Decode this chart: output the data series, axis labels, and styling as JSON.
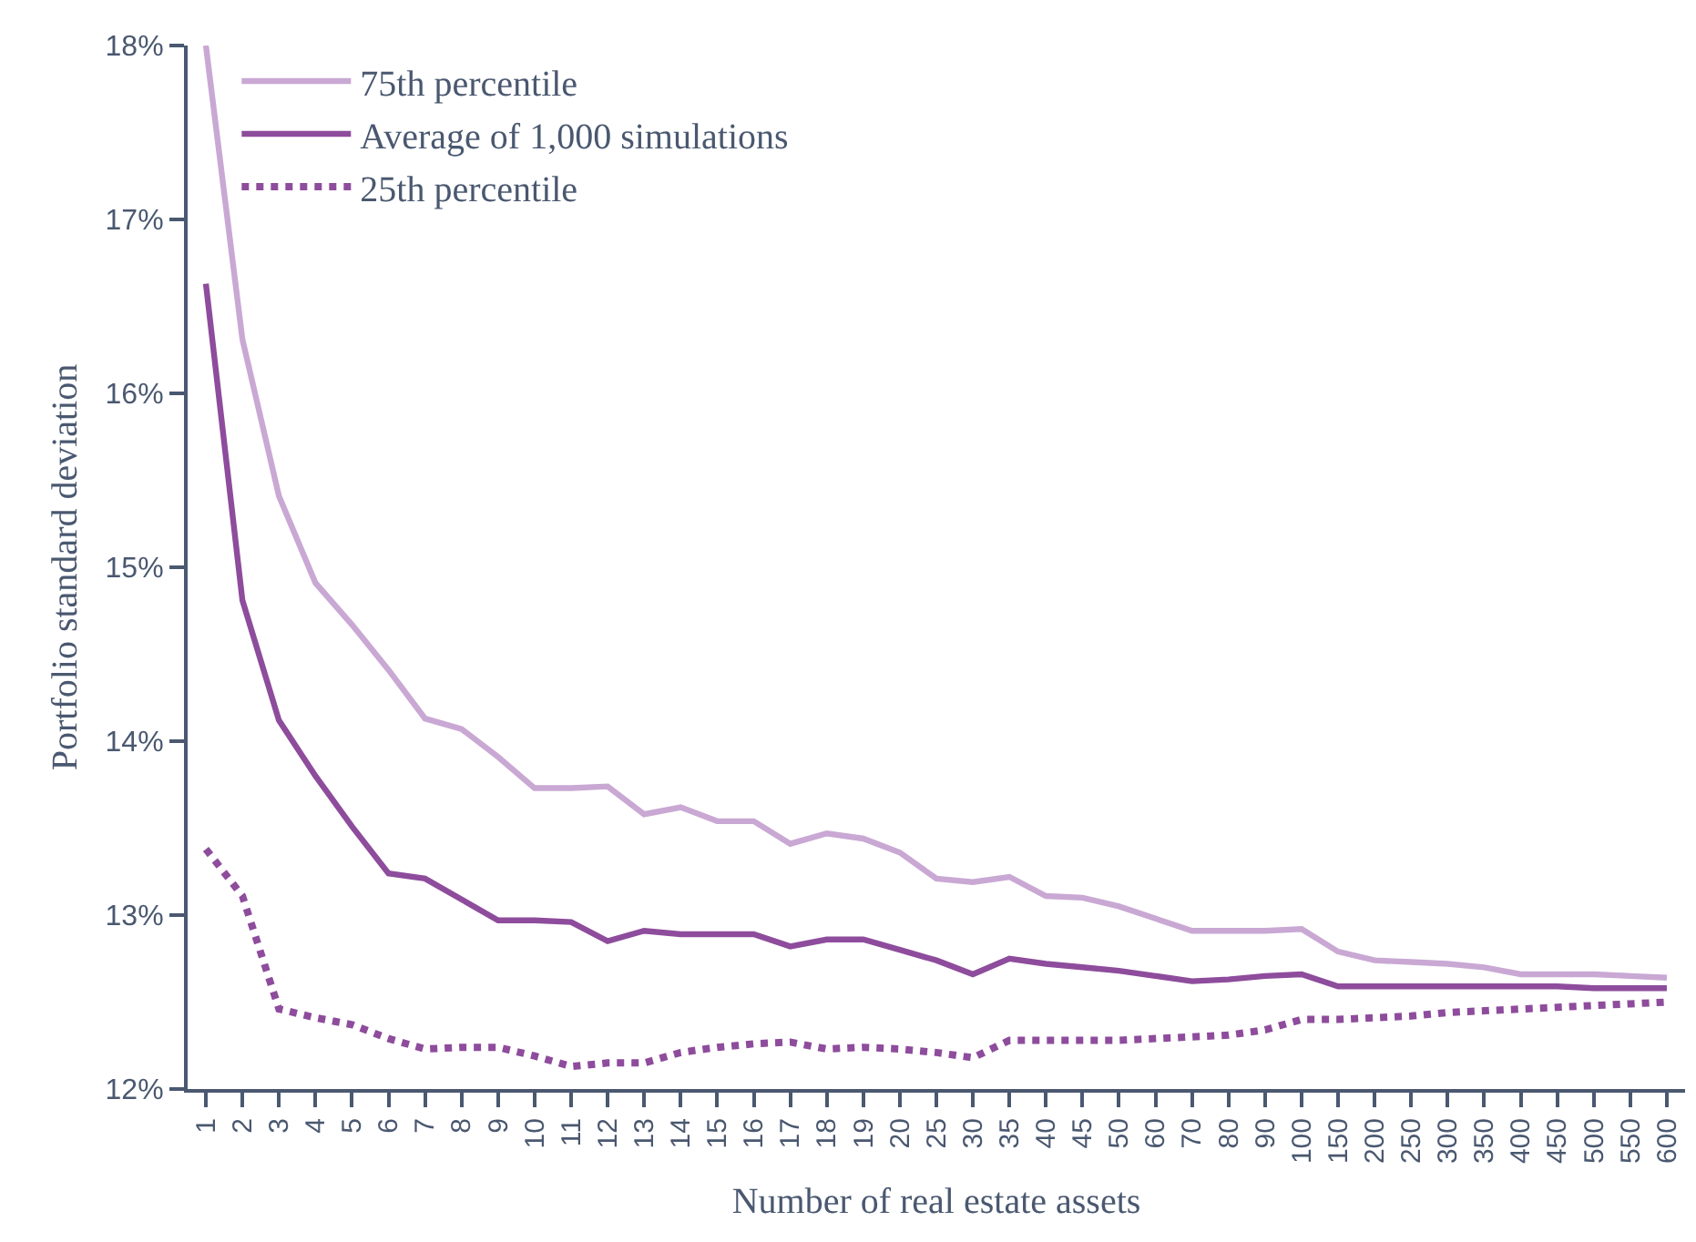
{
  "chart_data": {
    "type": "line",
    "xlabel": "Number of real estate assets",
    "ylabel": "Portfolio standard deviation",
    "categories": [
      "1",
      "2",
      "3",
      "4",
      "5",
      "6",
      "7",
      "8",
      "9",
      "10",
      "11",
      "12",
      "13",
      "14",
      "15",
      "16",
      "17",
      "18",
      "19",
      "20",
      "25",
      "30",
      "35",
      "40",
      "45",
      "50",
      "60",
      "70",
      "80",
      "90",
      "100",
      "150",
      "200",
      "250",
      "300",
      "350",
      "400",
      "450",
      "500",
      "550",
      "600"
    ],
    "series": [
      {
        "name": "75th percentile",
        "color": "#c9a8d4",
        "line_style": "solid",
        "values": [
          18,
          16.31,
          15.41,
          14.91,
          14.67,
          14.41,
          14.13,
          14.07,
          13.91,
          13.73,
          13.73,
          13.74,
          13.58,
          13.62,
          13.54,
          13.54,
          13.41,
          13.47,
          13.44,
          13.36,
          13.21,
          13.19,
          13.22,
          13.11,
          13.1,
          13.05,
          12.98,
          12.91,
          12.91,
          12.91,
          12.92,
          12.79,
          12.74,
          12.73,
          12.72,
          12.7,
          12.66,
          12.66,
          12.66,
          12.65,
          12.64
        ]
      },
      {
        "name": "Average of 1,000 simulations",
        "color": "#8e4c9c",
        "line_style": "solid",
        "values": [
          16.63,
          14.81,
          14.12,
          13.8,
          13.51,
          13.24,
          13.21,
          13.09,
          12.97,
          12.97,
          12.96,
          12.85,
          12.91,
          12.89,
          12.89,
          12.89,
          12.82,
          12.86,
          12.86,
          12.8,
          12.74,
          12.66,
          12.75,
          12.72,
          12.7,
          12.68,
          12.65,
          12.62,
          12.63,
          12.65,
          12.66,
          12.59,
          12.59,
          12.59,
          12.59,
          12.59,
          12.59,
          12.59,
          12.58,
          12.58,
          12.58
        ]
      },
      {
        "name": "25th percentile",
        "color": "#8e4c9c",
        "line_style": "dotted",
        "values": [
          13.38,
          13.11,
          12.46,
          12.41,
          12.37,
          12.29,
          12.23,
          12.24,
          12.24,
          12.19,
          12.13,
          12.15,
          12.15,
          12.21,
          12.24,
          12.26,
          12.27,
          12.23,
          12.24,
          12.23,
          12.21,
          12.18,
          12.28,
          12.28,
          12.28,
          12.28,
          12.29,
          12.3,
          12.31,
          12.34,
          12.4,
          12.4,
          12.41,
          12.42,
          12.44,
          12.45,
          12.46,
          12.47,
          12.48,
          12.49,
          12.5
        ]
      }
    ],
    "ylim": [
      12,
      18
    ],
    "yticks": [
      {
        "value": 12,
        "label": "12%"
      },
      {
        "value": 13,
        "label": "13%"
      },
      {
        "value": 14,
        "label": "14%"
      },
      {
        "value": 15,
        "label": "15%"
      },
      {
        "value": 16,
        "label": "16%"
      },
      {
        "value": 17,
        "label": "17%"
      },
      {
        "value": 18,
        "label": "18%"
      }
    ],
    "legend": "top left",
    "grid": false,
    "marker": "none"
  }
}
